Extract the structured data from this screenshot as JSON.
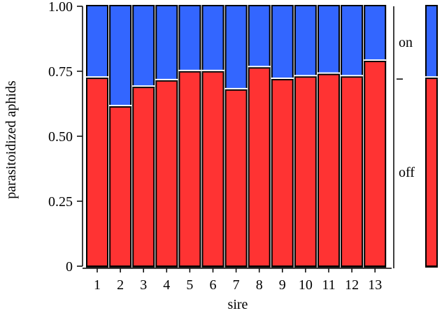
{
  "chart_data": {
    "type": "bar",
    "stacked": true,
    "xlabel": "sire",
    "ylabel": "parasitoidized aphids",
    "ylim": [
      0,
      1
    ],
    "yticks": [
      "0",
      "0.25",
      "0.50",
      "0.75",
      "1.00"
    ],
    "ytick_values": [
      0,
      0.25,
      0.5,
      0.75,
      1.0
    ],
    "categories": [
      "1",
      "2",
      "3",
      "4",
      "5",
      "6",
      "7",
      "8",
      "9",
      "10",
      "11",
      "12",
      "13"
    ],
    "series": [
      {
        "name": "off",
        "color": "#ff3333",
        "values": [
          0.72,
          0.61,
          0.685,
          0.71,
          0.745,
          0.745,
          0.675,
          0.76,
          0.715,
          0.725,
          0.735,
          0.725,
          0.785
        ]
      },
      {
        "name": "on",
        "color": "#3366ff",
        "values": [
          0.28,
          0.39,
          0.315,
          0.29,
          0.255,
          0.255,
          0.325,
          0.24,
          0.285,
          0.275,
          0.265,
          0.275,
          0.215
        ]
      }
    ],
    "side_labels": {
      "on": "on",
      "off": "off"
    },
    "overall_bar": {
      "off": 0.72,
      "on": 0.28
    }
  }
}
